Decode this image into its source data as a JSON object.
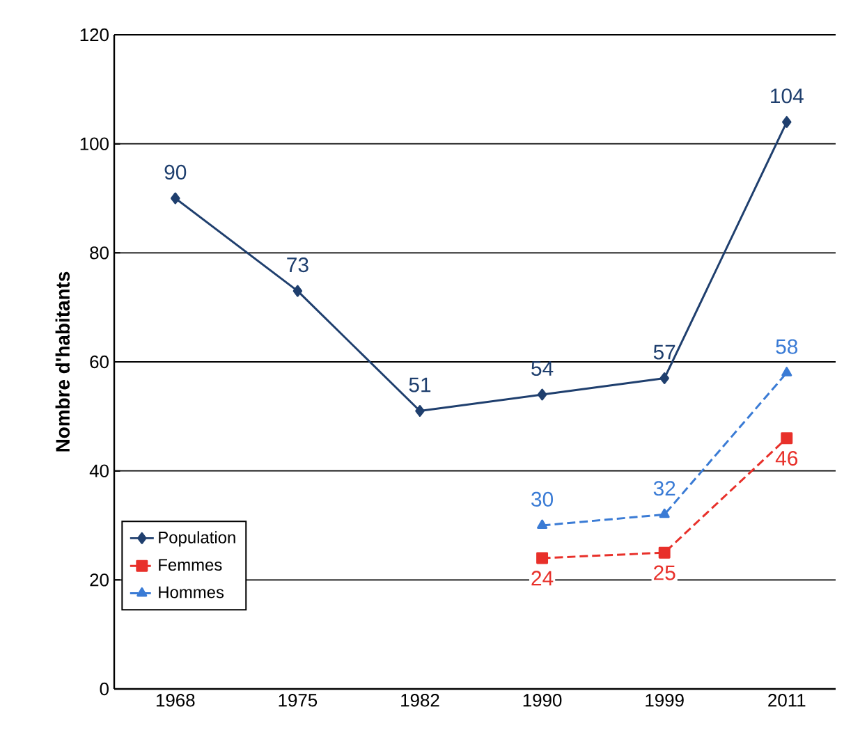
{
  "chart_data": {
    "type": "line",
    "ylabel": "Nombre d'habitants",
    "categories": [
      "1968",
      "1975",
      "1982",
      "1990",
      "1999",
      "2011"
    ],
    "series": [
      {
        "name": "Population",
        "color": "#1f3f6e",
        "marker": "diamond",
        "line_style": "solid",
        "values": [
          90,
          73,
          51,
          54,
          57,
          104
        ]
      },
      {
        "name": "Femmes",
        "color": "#e8302a",
        "marker": "square",
        "line_style": "dashed",
        "values": [
          null,
          null,
          null,
          24,
          25,
          46
        ]
      },
      {
        "name": "Hommes",
        "color": "#3a7bd5",
        "marker": "triangle",
        "line_style": "dashed",
        "values": [
          null,
          null,
          null,
          30,
          32,
          58
        ]
      }
    ],
    "ylim": [
      0,
      120
    ],
    "yticks": [
      0,
      20,
      40,
      60,
      80,
      100,
      120
    ],
    "grid": "y",
    "legend": "bottom left",
    "data_labels": true
  }
}
